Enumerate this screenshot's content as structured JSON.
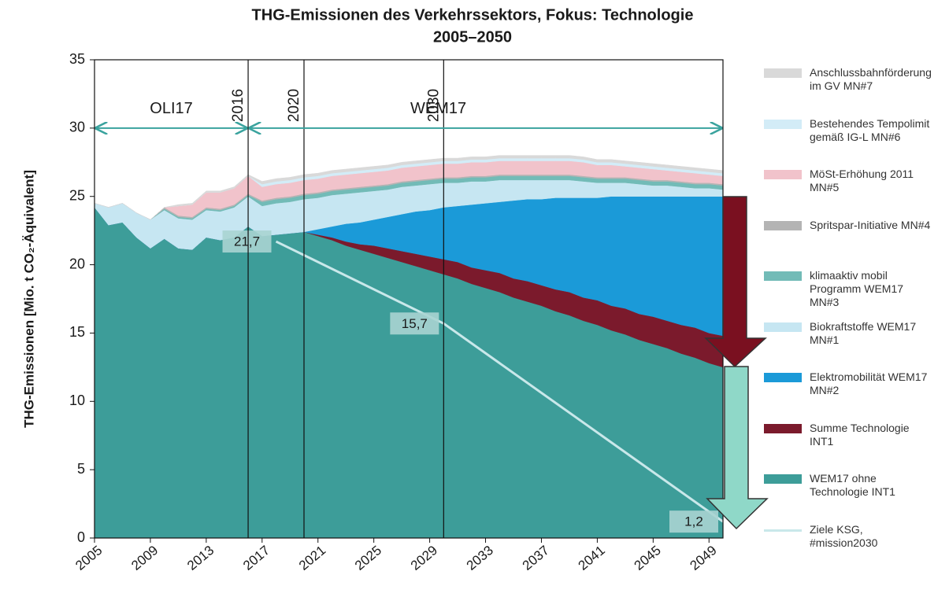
{
  "chart_data": {
    "type": "stacked_area",
    "title": "THG-Emissionen des Verkehrssektors, Fokus: Technologie",
    "subtitle": "2005–2050",
    "y_label": "THG-Emissionen [Mio. t CO₂-Äquivalent]",
    "x": [
      2005,
      2006,
      2007,
      2008,
      2009,
      2010,
      2011,
      2012,
      2013,
      2014,
      2015,
      2016,
      2017,
      2018,
      2019,
      2020,
      2021,
      2022,
      2023,
      2024,
      2025,
      2026,
      2027,
      2028,
      2029,
      2030,
      2031,
      2032,
      2033,
      2034,
      2035,
      2036,
      2037,
      2038,
      2039,
      2040,
      2041,
      2042,
      2043,
      2044,
      2045,
      2046,
      2047,
      2048,
      2049,
      2050
    ],
    "xlim": [
      2005,
      2050
    ],
    "xticks": [
      2005,
      2009,
      2013,
      2017,
      2021,
      2025,
      2029,
      2033,
      2037,
      2041,
      2045,
      2049
    ],
    "ylim": [
      0,
      35
    ],
    "yticks": [
      0,
      5,
      10,
      15,
      20,
      25,
      30,
      35
    ],
    "grid": false,
    "series": [
      {
        "name": "WEM17 ohne Technologie INT1",
        "color": "#3d9d99",
        "values": [
          24.2,
          22.9,
          23.1,
          22.0,
          21.2,
          21.9,
          21.2,
          21.1,
          22.0,
          21.8,
          22.0,
          22.8,
          22.1,
          22.2,
          22.3,
          22.4,
          22.1,
          21.8,
          21.4,
          21.1,
          20.8,
          20.5,
          20.2,
          19.9,
          19.6,
          19.3,
          19.0,
          18.6,
          18.3,
          18.0,
          17.6,
          17.3,
          17.0,
          16.6,
          16.3,
          15.9,
          15.6,
          15.2,
          14.9,
          14.5,
          14.2,
          13.9,
          13.5,
          13.2,
          12.8,
          12.5
        ]
      },
      {
        "name": "Summe Technologie INT1",
        "color": "#7b1a2c",
        "values": [
          0,
          0,
          0,
          0,
          0,
          0,
          0,
          0,
          0,
          0,
          0,
          0,
          0,
          0,
          0,
          0,
          0.1,
          0.2,
          0.3,
          0.4,
          0.6,
          0.7,
          0.8,
          0.9,
          1.0,
          1.1,
          1.2,
          1.2,
          1.3,
          1.4,
          1.4,
          1.5,
          1.5,
          1.6,
          1.7,
          1.7,
          1.8,
          1.8,
          1.9,
          1.9,
          2.0,
          2.0,
          2.1,
          2.2,
          2.2,
          2.3
        ]
      },
      {
        "name": "Elektromobilität WEM17 MN#2",
        "color": "#1b9ad8",
        "values": [
          0,
          0,
          0,
          0,
          0,
          0,
          0,
          0,
          0,
          0,
          0,
          0,
          0,
          0,
          0,
          0,
          0.4,
          0.8,
          1.3,
          1.6,
          1.9,
          2.3,
          2.7,
          3.1,
          3.4,
          3.8,
          4.1,
          4.6,
          4.9,
          5.2,
          5.7,
          6.0,
          6.3,
          6.7,
          6.9,
          7.3,
          7.5,
          8.0,
          8.2,
          8.6,
          8.8,
          9.1,
          9.4,
          9.6,
          10.0,
          10.2
        ]
      },
      {
        "name": "Biokraftstoffe WEM17 MN#1",
        "color": "#c6e6f2",
        "values": [
          0.3,
          1.3,
          1.4,
          1.8,
          2.1,
          2.1,
          2.2,
          2.2,
          2.0,
          2.1,
          2.2,
          2.2,
          2.2,
          2.3,
          2.3,
          2.4,
          2.3,
          2.3,
          2.2,
          2.2,
          2.1,
          2.0,
          2.0,
          1.9,
          1.9,
          1.8,
          1.7,
          1.7,
          1.6,
          1.6,
          1.5,
          1.4,
          1.4,
          1.3,
          1.3,
          1.2,
          1.1,
          1.0,
          1.0,
          0.9,
          0.8,
          0.8,
          0.7,
          0.6,
          0.6,
          0.5
        ]
      },
      {
        "name": "klimaaktiv mobil Programm WEM17 MN#3",
        "color": "#72bbb7",
        "values": [
          0,
          0,
          0,
          0,
          0,
          0.1,
          0.1,
          0.1,
          0.1,
          0.1,
          0.1,
          0.1,
          0.3,
          0.3,
          0.3,
          0.3,
          0.3,
          0.3,
          0.3,
          0.3,
          0.3,
          0.3,
          0.3,
          0.3,
          0.3,
          0.3,
          0.3,
          0.3,
          0.3,
          0.3,
          0.3,
          0.3,
          0.3,
          0.3,
          0.3,
          0.3,
          0.3,
          0.3,
          0.3,
          0.3,
          0.3,
          0.3,
          0.3,
          0.3,
          0.3,
          0.3
        ]
      },
      {
        "name": "Spritspar-Initiative MN#4",
        "color": "#b4b4b4",
        "values": [
          0,
          0,
          0,
          0,
          0,
          0.1,
          0.1,
          0.1,
          0.1,
          0.1,
          0.1,
          0.1,
          0.1,
          0.1,
          0.1,
          0.1,
          0.1,
          0.1,
          0.1,
          0.1,
          0.1,
          0.1,
          0.1,
          0.1,
          0.1,
          0.1,
          0.1,
          0.1,
          0.1,
          0.1,
          0.1,
          0.1,
          0.1,
          0.1,
          0.1,
          0.1,
          0.1,
          0.1,
          0.1,
          0.1,
          0.1,
          0.1,
          0.1,
          0.1,
          0.1,
          0.1
        ]
      },
      {
        "name": "MöSt-Erhöhung 2011 MN#5",
        "color": "#f1c3cb",
        "values": [
          0,
          0,
          0,
          0,
          0,
          0,
          0.7,
          0.9,
          1.1,
          1.2,
          1.2,
          1.3,
          1.0,
          1.0,
          1.0,
          1.0,
          1.0,
          1.0,
          1.0,
          1.0,
          1.0,
          1.0,
          1.0,
          1.0,
          1.0,
          1.0,
          1.0,
          1.0,
          1.0,
          1.0,
          1.0,
          1.0,
          1.0,
          1.0,
          1.0,
          1.0,
          0.9,
          0.9,
          0.8,
          0.8,
          0.8,
          0.7,
          0.7,
          0.7,
          0.6,
          0.6
        ]
      },
      {
        "name": "Bestehendes Tempolimit gemäß IG-L MN#6",
        "color": "#d3ecf7",
        "values": [
          0,
          0,
          0,
          0,
          0,
          0,
          0,
          0,
          0,
          0,
          0,
          0,
          0.2,
          0.2,
          0.2,
          0.2,
          0.2,
          0.2,
          0.2,
          0.2,
          0.2,
          0.2,
          0.2,
          0.2,
          0.2,
          0.2,
          0.2,
          0.2,
          0.2,
          0.2,
          0.2,
          0.2,
          0.2,
          0.2,
          0.2,
          0.2,
          0.2,
          0.2,
          0.2,
          0.2,
          0.2,
          0.2,
          0.2,
          0.2,
          0.2,
          0.2
        ]
      },
      {
        "name": "Anschlussbahnförderung im GV MN#7",
        "color": "#d9d9d9",
        "values": [
          0,
          0,
          0,
          0,
          0,
          0,
          0.1,
          0.1,
          0.1,
          0.1,
          0.1,
          0.1,
          0.2,
          0.2,
          0.2,
          0.2,
          0.2,
          0.2,
          0.2,
          0.2,
          0.2,
          0.2,
          0.2,
          0.2,
          0.2,
          0.2,
          0.2,
          0.2,
          0.2,
          0.2,
          0.2,
          0.2,
          0.2,
          0.2,
          0.2,
          0.2,
          0.2,
          0.2,
          0.2,
          0.2,
          0.2,
          0.2,
          0.2,
          0.2,
          0.2,
          0.2
        ]
      }
    ],
    "target_line": {
      "name": "Ziele KSG, #mission2030",
      "color": "#c9e8ea",
      "x": [
        2018,
        2030,
        2050
      ],
      "values": [
        21.7,
        15.7,
        1.2
      ],
      "value_labels": [
        "21,7",
        "15,7",
        "1,2"
      ]
    },
    "vlines": [
      {
        "x": 2016,
        "label": "2016"
      },
      {
        "x": 2020,
        "label": "2020"
      },
      {
        "x": 2030,
        "label": "2030"
      }
    ],
    "periods": [
      {
        "label": "OLI17",
        "from": 2005,
        "to": 2016,
        "y": 30
      },
      {
        "label": "WEM17",
        "from": 2016,
        "to": 2050,
        "y": 30
      }
    ]
  }
}
